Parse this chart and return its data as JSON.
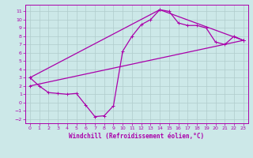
{
  "title": "",
  "xlabel": "Windchill (Refroidissement éolien,°C)",
  "bg_color": "#cce8e8",
  "grid_color": "#b0cccc",
  "line_color": "#aa00aa",
  "xlim": [
    -0.5,
    23.5
  ],
  "ylim": [
    -2.5,
    11.8
  ],
  "xticks": [
    0,
    1,
    2,
    3,
    4,
    5,
    6,
    7,
    8,
    9,
    10,
    11,
    12,
    13,
    14,
    15,
    16,
    17,
    18,
    19,
    20,
    21,
    22,
    23
  ],
  "yticks": [
    -2,
    -1,
    0,
    1,
    2,
    3,
    4,
    5,
    6,
    7,
    8,
    9,
    10,
    11
  ],
  "line1_x": [
    0,
    1,
    2,
    3,
    4,
    5,
    6,
    7,
    8,
    9,
    10,
    11,
    12,
    13,
    14,
    15,
    16,
    17,
    18,
    19,
    20,
    21,
    22,
    23
  ],
  "line1_y": [
    3.0,
    2.0,
    1.2,
    1.1,
    1.0,
    1.1,
    -0.3,
    -1.7,
    -1.6,
    -0.4,
    6.2,
    8.0,
    9.4,
    10.0,
    11.2,
    11.0,
    9.6,
    9.3,
    9.3,
    9.0,
    7.3,
    7.0,
    8.0,
    7.5
  ],
  "line2_x": [
    0,
    14,
    23
  ],
  "line2_y": [
    3.0,
    11.2,
    7.5
  ],
  "line3_x": [
    0,
    23
  ],
  "line3_y": [
    2.0,
    7.5
  ],
  "markersize": 3,
  "linewidth": 0.9,
  "tick_fontsize": 4.5,
  "xlabel_fontsize": 5.5
}
